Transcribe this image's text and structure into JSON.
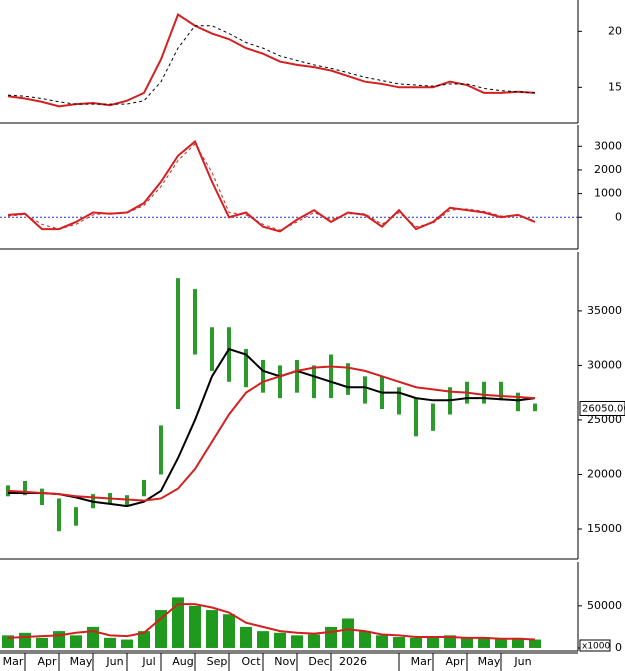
{
  "chart_data": [
    {
      "type": "line",
      "ylim": [
        11.9,
        22.8
      ],
      "yticks": [
        15,
        20
      ],
      "series": [
        {
          "color": "#d42020",
          "values": [
            14.2,
            14.0,
            13.7,
            13.3,
            13.5,
            13.6,
            13.4,
            13.8,
            14.5,
            17.5,
            21.5,
            20.5,
            19.8,
            19.3,
            18.5,
            18.0,
            17.3,
            17.0,
            16.8,
            16.5,
            16.0,
            15.5,
            15.3,
            15.0,
            15.0,
            15.0,
            15.5,
            15.2,
            14.5,
            14.5,
            14.6,
            14.5
          ]
        },
        {
          "color": "#000000",
          "dash": true,
          "values": [
            14.3,
            14.2,
            14.0,
            13.7,
            13.5,
            13.5,
            13.5,
            13.5,
            13.8,
            15.5,
            18.5,
            20.5,
            20.5,
            19.8,
            19.0,
            18.5,
            17.8,
            17.4,
            17.0,
            16.7,
            16.3,
            15.9,
            15.6,
            15.3,
            15.2,
            15.1,
            15.3,
            15.3,
            14.9,
            14.7,
            14.6,
            14.5
          ]
        }
      ]
    },
    {
      "type": "line",
      "ylim": [
        -1300,
        3900
      ],
      "yticks": [
        0,
        1000,
        2000,
        3000
      ],
      "reference_line": 0,
      "series": [
        {
          "color": "#d42020",
          "values": [
            100,
            150,
            -500,
            -500,
            -200,
            200,
            150,
            200,
            600,
            1500,
            2600,
            3200,
            1500,
            0,
            200,
            -400,
            -600,
            -100,
            300,
            -200,
            200,
            100,
            -400,
            300,
            -500,
            -200,
            400,
            300,
            200,
            0,
            100,
            -200
          ]
        },
        {
          "color": "#d42020",
          "dash": true,
          "values": [
            50,
            120,
            -300,
            -500,
            -300,
            100,
            180,
            180,
            500,
            1300,
            2400,
            3100,
            1900,
            200,
            100,
            -300,
            -550,
            -200,
            200,
            -100,
            150,
            150,
            -300,
            200,
            -400,
            -250,
            300,
            350,
            250,
            50,
            80,
            -150
          ]
        }
      ]
    },
    {
      "type": "candlestick",
      "ylim": [
        12340,
        40400
      ],
      "yticks": [
        15000,
        20000,
        25000,
        30000,
        35000
      ],
      "color": "#2a9a2a",
      "high": [
        19000,
        19400,
        18700,
        17800,
        17000,
        18200,
        18300,
        18100,
        19500,
        24500,
        38000,
        37000,
        33500,
        33500,
        31500,
        30500,
        30000,
        30500,
        30000,
        31000,
        30200,
        29000,
        29000,
        28000,
        27000,
        26500,
        28000,
        28500,
        28500,
        28500,
        27500,
        26500
      ],
      "low": [
        18000,
        18100,
        17200,
        14800,
        15300,
        16900,
        17300,
        17200,
        18000,
        20000,
        26000,
        31000,
        29500,
        28500,
        28000,
        27500,
        27000,
        27500,
        27000,
        27000,
        27300,
        26500,
        26000,
        25500,
        23500,
        24000,
        25500,
        26500,
        26500,
        26800,
        25800,
        25800
      ],
      "series": [
        {
          "color": "#000000",
          "values": [
            18300,
            18300,
            18300,
            18200,
            17900,
            17500,
            17300,
            17100,
            17500,
            18500,
            21500,
            25000,
            29000,
            31500,
            31000,
            29500,
            29000,
            29500,
            29000,
            28500,
            28000,
            28000,
            27500,
            27500,
            27000,
            26800,
            26800,
            27000,
            27000,
            26900,
            26800,
            27000
          ]
        },
        {
          "color": "#d42020",
          "values": [
            18500,
            18400,
            18300,
            18200,
            18000,
            17900,
            17800,
            17700,
            17600,
            17800,
            18700,
            20500,
            23000,
            25500,
            27500,
            28500,
            29000,
            29500,
            29800,
            29900,
            29800,
            29500,
            29000,
            28500,
            28000,
            27800,
            27600,
            27500,
            27300,
            27200,
            27100,
            27000
          ]
        }
      ],
      "last_price": {
        "value": 26050,
        "label": "26050.00"
      }
    },
    {
      "type": "bar",
      "ylim": [
        -2400,
        102000
      ],
      "yticks": [
        0,
        50000
      ],
      "unit_label": "x1000",
      "color": "#1f9a1f",
      "values": [
        15000,
        18000,
        12000,
        20000,
        15000,
        25000,
        12000,
        10000,
        20000,
        45000,
        60000,
        50000,
        45000,
        40000,
        25000,
        20000,
        18000,
        15000,
        16000,
        25000,
        35000,
        20000,
        15000,
        13000,
        12000,
        14000,
        15000,
        12000,
        13000,
        11000,
        12000,
        10000
      ],
      "series": [
        {
          "color": "#d42020",
          "values": [
            12000,
            13000,
            14000,
            15000,
            18000,
            20000,
            15000,
            14000,
            18000,
            35000,
            52000,
            52000,
            48000,
            42000,
            30000,
            25000,
            20000,
            18000,
            17000,
            19000,
            22000,
            20000,
            16000,
            15000,
            13000,
            13000,
            13000,
            12000,
            12000,
            11000,
            11000,
            10000
          ]
        }
      ],
      "categories": [
        "Mar",
        null,
        "Apr",
        null,
        "May",
        null,
        "Jun",
        null,
        "Jul",
        null,
        "Aug",
        null,
        "Sep",
        null,
        "Oct",
        null,
        "Nov",
        null,
        "Dec",
        null,
        "2026",
        null,
        null,
        null,
        "Mar",
        null,
        "Apr",
        null,
        "May",
        null,
        "Jun",
        null
      ]
    }
  ]
}
